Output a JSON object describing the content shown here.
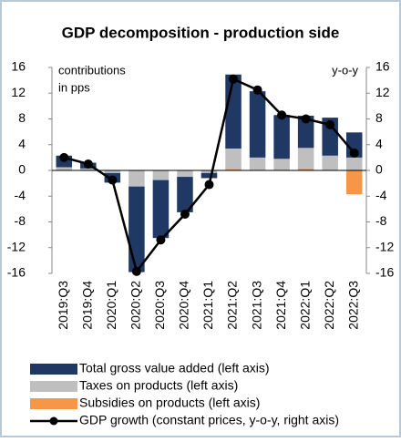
{
  "chart_data": {
    "type": "bar_line",
    "title": "GDP decomposition - production side",
    "annotations": [
      "contributions",
      "in pps",
      "y-o-y"
    ],
    "categories": [
      "2019:Q3",
      "2019:Q4",
      "2020:Q1",
      "2020:Q2",
      "2020:Q3",
      "2020:Q4",
      "2021:Q1",
      "2021:Q2",
      "2021:Q3",
      "2021:Q4",
      "2022:Q1",
      "2022:Q2",
      "2022:Q3"
    ],
    "series": [
      {
        "name": "Total gross value added (left axis)",
        "color": "#1f3864",
        "type": "bar",
        "axis": "y",
        "values": [
          1.8,
          0.9,
          -1.5,
          -13.3,
          -9.0,
          -5.5,
          -0.8,
          11.5,
          10.3,
          6.8,
          5.0,
          5.9,
          3.9
        ]
      },
      {
        "name": "Taxes on products (left axis)",
        "color": "#bfbfbf",
        "type": "bar",
        "axis": "y",
        "values": [
          0.5,
          0.3,
          -0.4,
          -2.5,
          -1.5,
          -1.0,
          -0.4,
          3.2,
          2.0,
          1.8,
          3.2,
          2.3,
          2.0
        ]
      },
      {
        "name": "Subsidies on products (left axis)",
        "color": "#f79646",
        "type": "bar",
        "axis": "y",
        "values": [
          0,
          0,
          0,
          0,
          0,
          0,
          0,
          0.2,
          0,
          0,
          0.3,
          0,
          -3.7
        ]
      },
      {
        "name": "GDP growth (constant prices, y-o-y, right axis)",
        "color": "#000000",
        "type": "line",
        "axis": "y2",
        "values": [
          2.0,
          1.0,
          -1.5,
          -15.7,
          -10.8,
          -6.8,
          -2.2,
          14.2,
          12.5,
          8.6,
          8.0,
          7.1,
          2.7
        ]
      }
    ],
    "ylim": [
      -16,
      16
    ],
    "yticks": [
      -16,
      -12,
      -8,
      -4,
      0,
      4,
      8,
      12,
      16
    ],
    "y2lim": [
      -16,
      16
    ],
    "y2ticks": [
      -16,
      -12,
      -8,
      -4,
      0,
      4,
      8,
      12,
      16
    ],
    "legend": "bottom"
  }
}
